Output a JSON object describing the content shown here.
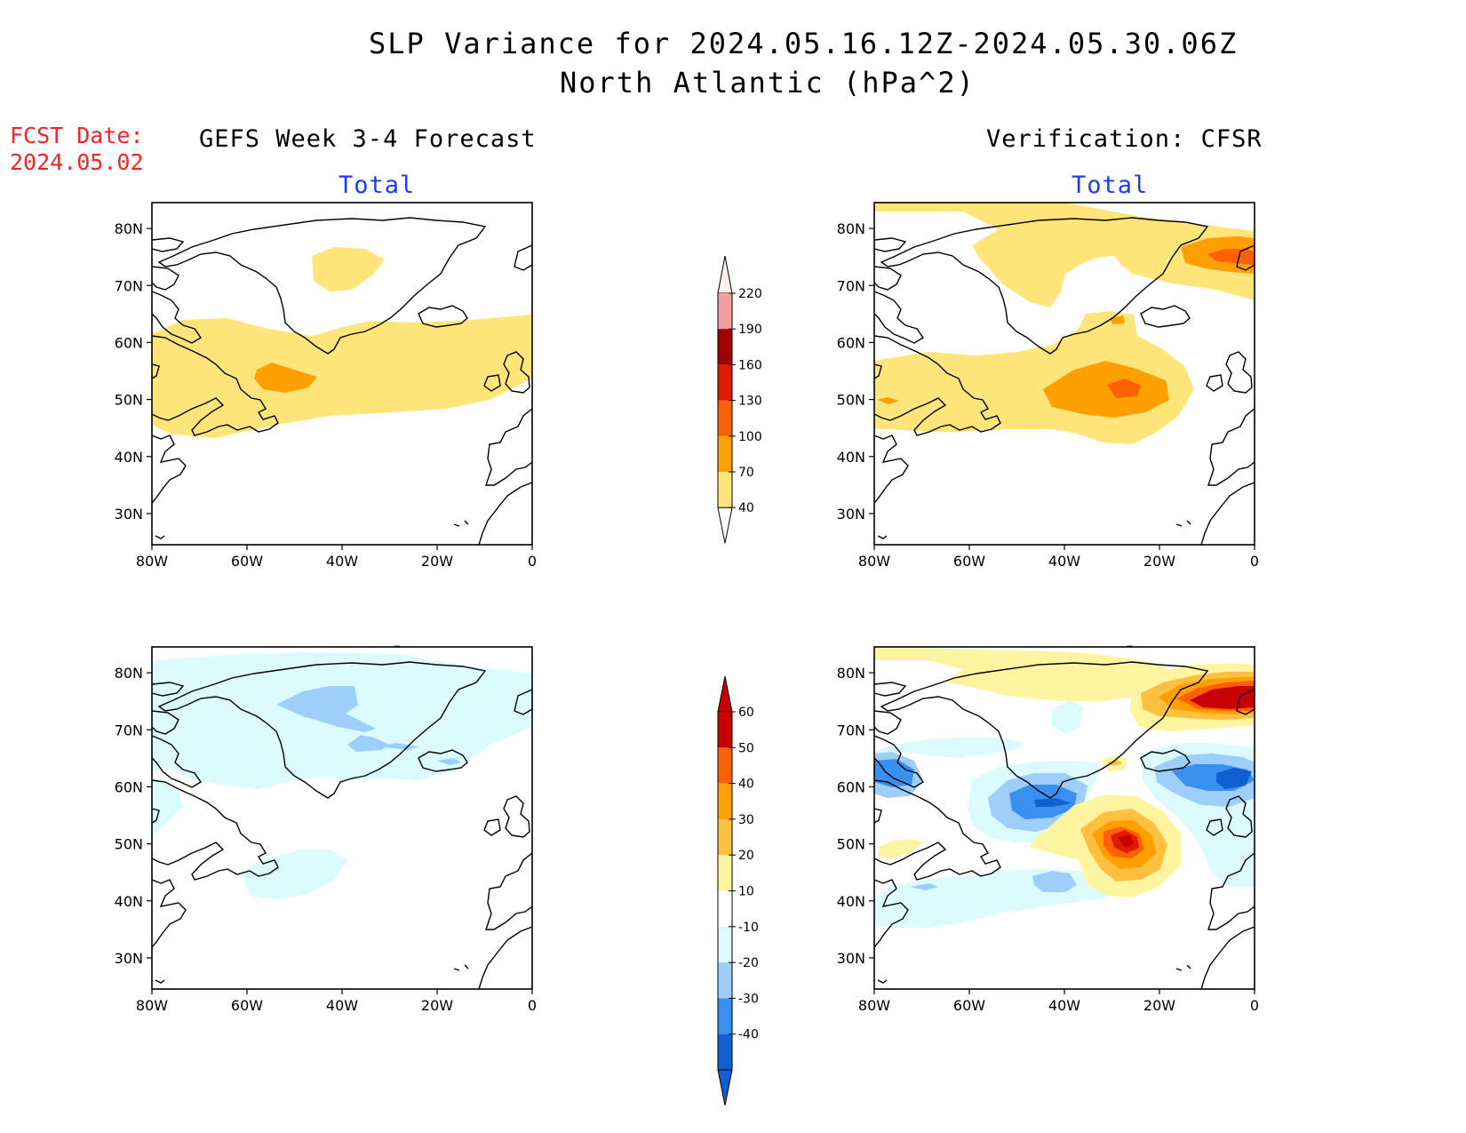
{
  "header": {
    "title_line1": "SLP Variance for 2024.05.16.12Z-2024.05.30.06Z",
    "title_line2": "North Atlantic (hPa^2)",
    "fcst_label": "FCST Date:",
    "fcst_date": "2024.05.02"
  },
  "columns": {
    "left": "GEFS Week 3-4 Forecast",
    "right": "Verification: CFSR"
  },
  "panels": [
    {
      "id": "fcst-total",
      "title": "Total"
    },
    {
      "id": "verif-total",
      "title": "Total"
    },
    {
      "id": "fcst-anomaly",
      "title": "Anomaly"
    },
    {
      "id": "verif-anomaly",
      "title": "Anomaly"
    }
  ],
  "axes": {
    "lat_labels": [
      "80N",
      "70N",
      "60N",
      "50N",
      "40N",
      "30N"
    ],
    "lon_labels": [
      "80W",
      "60W",
      "40W",
      "20W",
      "0"
    ],
    "lat_range": [
      25,
      85
    ],
    "lon_range": [
      -80,
      0
    ]
  },
  "colorbars": {
    "total": {
      "labels": [
        "220",
        "190",
        "160",
        "130",
        "100",
        "70",
        "40"
      ],
      "colors": [
        "#f4a0a0",
        "#a00000",
        "#e01a00",
        "#ff6000",
        "#ffa000",
        "#ffe57a"
      ]
    },
    "anomaly": {
      "labels": [
        "60",
        "50",
        "40",
        "30",
        "20",
        "10",
        "-10",
        "-20",
        "-30",
        "-40"
      ],
      "colors": [
        "#c80000",
        "#ff6000",
        "#ffa000",
        "#ffc040",
        "#fff5a0",
        "#ffffff",
        "#dbfbff",
        "#9ecffa",
        "#3a90f0",
        "#1060d0"
      ]
    }
  }
}
